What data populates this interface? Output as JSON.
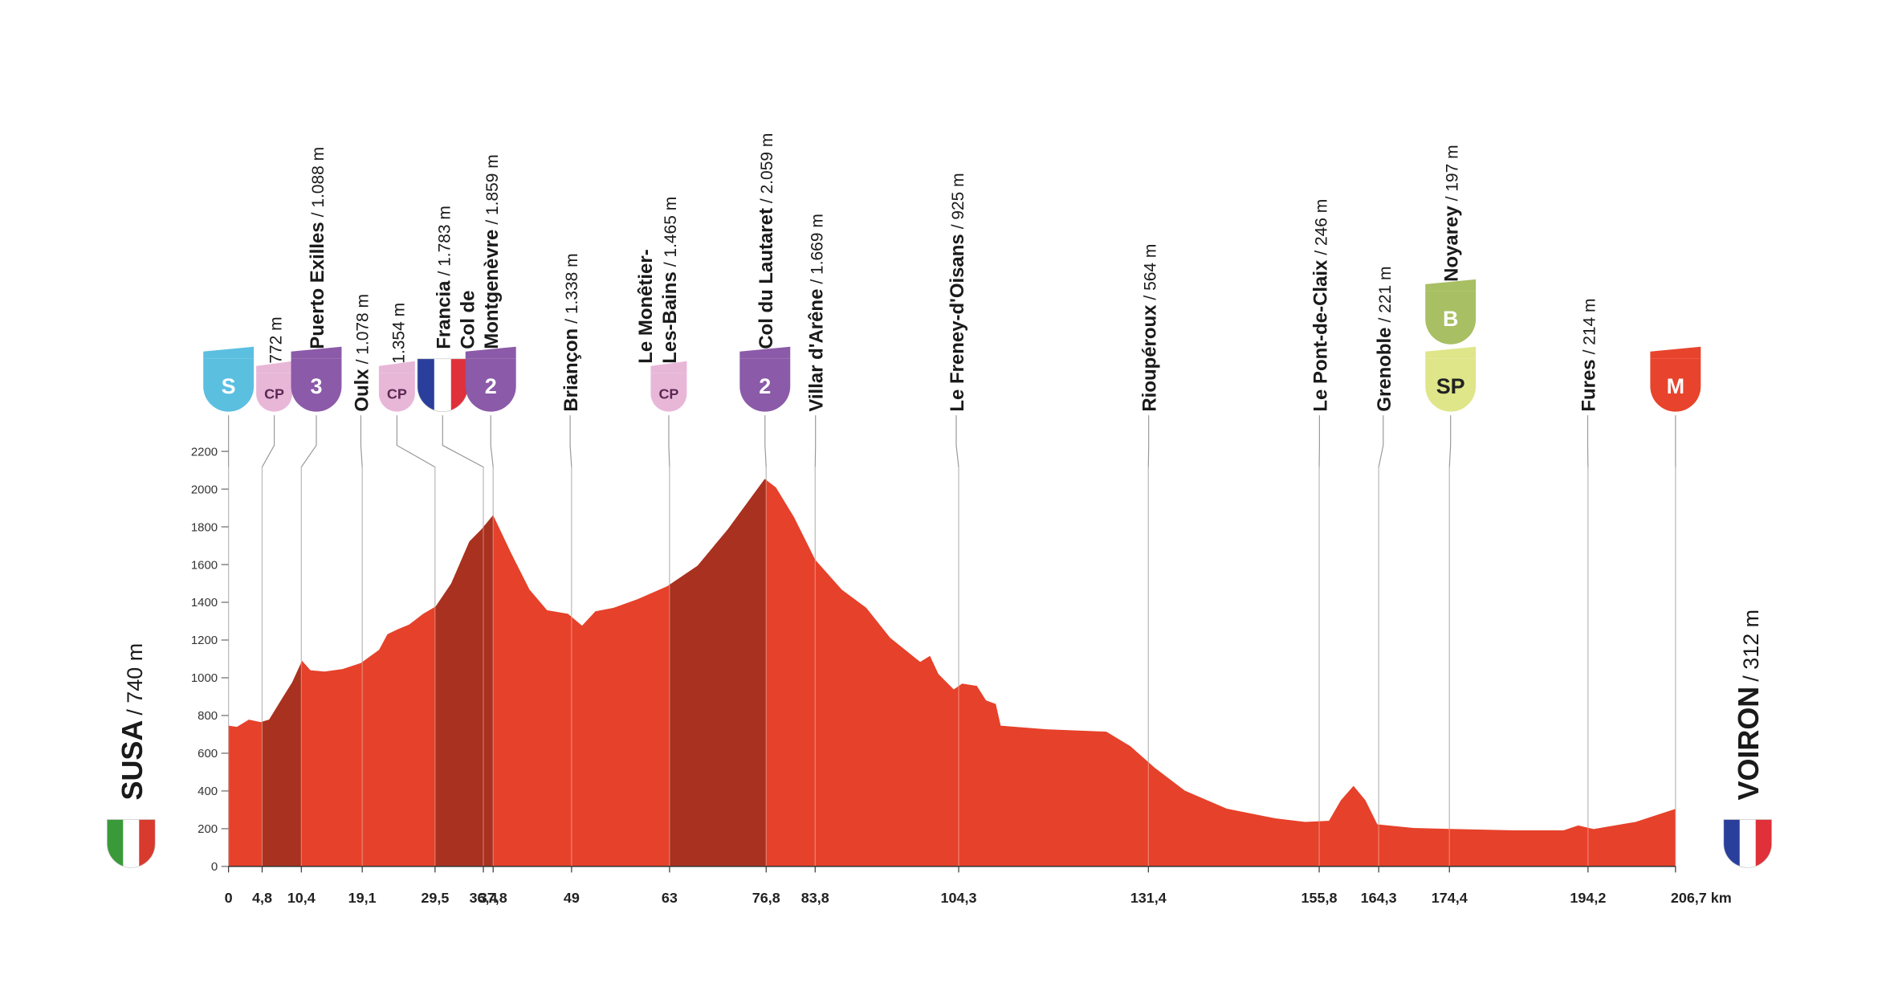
{
  "chart_data": {
    "type": "area",
    "color": "#e6412a",
    "climb_color": "#a9311f",
    "x": [
      0,
      1.2,
      2.9,
      4.6,
      5.8,
      7.7,
      9.1,
      10.5,
      11.7,
      13.7,
      16.3,
      18.9,
      21.5,
      22.7,
      24.1,
      25.8,
      27.8,
      29.6,
      31.8,
      34.4,
      36.1,
      37.8,
      40.4,
      43,
      45.5,
      48.5,
      50.5,
      52.4,
      55,
      58.4,
      62.7,
      67,
      71.3,
      76.6,
      78.2,
      80.8,
      83.8,
      87.6,
      91.1,
      94.5,
      98.8,
      100.2,
      101.4,
      103.6,
      104.8,
      106.9,
      108.2,
      109.6,
      110.3,
      116.8,
      125.4,
      128.8,
      132.3,
      136.6,
      142.6,
      149.5,
      153.8,
      157.2,
      158.9,
      160.7,
      162.4,
      164.1,
      169.2,
      175.3,
      183.8,
      190.7,
      192.8,
      195,
      201,
      206.7
    ],
    "values": [
      746,
      740,
      778,
      765,
      778,
      893,
      976,
      1090,
      1040,
      1033,
      1046,
      1078,
      1148,
      1231,
      1256,
      1282,
      1339,
      1378,
      1499,
      1722,
      1786,
      1862,
      1658,
      1467,
      1358,
      1339,
      1276,
      1352,
      1371,
      1416,
      1486,
      1594,
      1786,
      2054,
      2009,
      1850,
      1626,
      1467,
      1371,
      1212,
      1084,
      1116,
      1020,
      938,
      969,
      957,
      880,
      861,
      746,
      727,
      714,
      638,
      523,
      402,
      306,
      255,
      236,
      242,
      351,
      427,
      351,
      223,
      204,
      198,
      191,
      191,
      217,
      198,
      236,
      305
    ],
    "climbs": [
      [
        4.8,
        10.4
      ],
      [
        29.5,
        37.8
      ],
      [
        63,
        76.8
      ]
    ],
    "xlim": [
      0,
      206.7
    ],
    "ylim": [
      0,
      2200
    ],
    "yticks": [
      0,
      200,
      400,
      600,
      800,
      1000,
      1200,
      1400,
      1600,
      1800,
      2000,
      2200
    ],
    "xticks": [
      0,
      {
        "value": 4.8,
        "label": "4,8"
      },
      {
        "value": 10.4,
        "label": "10,4"
      },
      {
        "value": 19.1,
        "label": "19,1"
      },
      {
        "value": 29.5,
        "label": "29,5"
      },
      {
        "value": 36.4,
        "label": "36,4"
      },
      {
        "value": 37.8,
        "label": "37,8"
      },
      49,
      63,
      {
        "value": 76.8,
        "label": "76,8"
      },
      {
        "value": 83.8,
        "label": "83,8"
      },
      {
        "value": 104.3,
        "label": "104,3"
      },
      {
        "value": 131.4,
        "label": "131,4"
      },
      {
        "value": 155.8,
        "label": "155,8"
      },
      {
        "value": 164.3,
        "label": "164,3"
      },
      {
        "value": 174.4,
        "label": "174,4"
      },
      {
        "value": 194.2,
        "label": "194,2"
      },
      {
        "value": 206.7,
        "label": "206,7 km"
      }
    ],
    "start": {
      "name": "SUSA",
      "altitude": "/ 740 m",
      "flag": [
        "#3a9a3a",
        "#ffffff",
        "#d83a2e"
      ]
    },
    "finish": {
      "name": "VOIRON",
      "altitude": "/ 312 m",
      "flag": [
        "#2a3f9c",
        "#ffffff",
        "#e0303a"
      ]
    },
    "waypoints": [
      {
        "km": 0,
        "badges": [
          {
            "text": "S",
            "color": "#5bbfe0",
            "text_color": "#ffffff",
            "shape": "large"
          }
        ]
      },
      {
        "km": 4.8,
        "altitude": "772 m",
        "badges": [
          {
            "text": "CP",
            "color": "#e8b7d8",
            "text_color": "#5a2a55",
            "shape": "small"
          }
        ]
      },
      {
        "km": 10.4,
        "name": [
          "Puerto Exilles"
        ],
        "altitude": "/ 1.088 m",
        "badges": [
          {
            "text": "3",
            "color": "#8b5aa8",
            "text_color": "#ffffff",
            "shape": "large"
          }
        ]
      },
      {
        "km": 19.1,
        "name": [
          "Oulx"
        ],
        "altitude": "/ 1.078 m"
      },
      {
        "km": 29.5,
        "altitude": "1.354 m",
        "badges": [
          {
            "text": "CP",
            "color": "#e8b7d8",
            "text_color": "#5a2a55",
            "shape": "small"
          }
        ]
      },
      {
        "km": 36.4,
        "name": [
          "Francia"
        ],
        "altitude": "/ 1.783 m",
        "badges": [
          {
            "flag": [
              "#2a3f9c",
              "#ffffff",
              "#e0303a"
            ],
            "shape": "large"
          }
        ]
      },
      {
        "km": 37.8,
        "name": [
          "Col de",
          "Montgenèvre"
        ],
        "altitude": "/ 1.859 m",
        "badges": [
          {
            "text": "2",
            "color": "#8b5aa8",
            "text_color": "#ffffff",
            "shape": "large"
          }
        ]
      },
      {
        "km": 49,
        "name": [
          "Briançon"
        ],
        "altitude": "/ 1.338 m"
      },
      {
        "km": 63,
        "name": [
          "Le Monêtier-",
          "Les-Bains"
        ],
        "altitude": "/ 1.465 m",
        "badges": [
          {
            "text": "CP",
            "color": "#e8b7d8",
            "text_color": "#5a2a55",
            "shape": "small"
          }
        ]
      },
      {
        "km": 76.8,
        "name": [
          "Col du Lautaret"
        ],
        "altitude": "/ 2.059 m",
        "badges": [
          {
            "text": "2",
            "color": "#8b5aa8",
            "text_color": "#ffffff",
            "shape": "large"
          }
        ]
      },
      {
        "km": 83.8,
        "name": [
          "Villar d'Arêne"
        ],
        "altitude": "/ 1.669 m"
      },
      {
        "km": 104.3,
        "name": [
          "Le Freney-d'Oisans"
        ],
        "altitude": "/ 925 m"
      },
      {
        "km": 131.4,
        "name": [
          "Rioupéroux"
        ],
        "altitude": "/ 564 m"
      },
      {
        "km": 155.8,
        "name": [
          "Le Pont-de-Claix"
        ],
        "altitude": "/ 246 m"
      },
      {
        "km": 164.3,
        "name": [
          "Grenoble"
        ],
        "altitude": "/ 221 m"
      },
      {
        "km": 174.4,
        "name": [
          "Noyarey"
        ],
        "altitude": "/ 197 m",
        "badges": [
          {
            "text": "SP",
            "color": "#dfe68a",
            "text_color": "#222222",
            "shape": "large"
          },
          {
            "text": "B",
            "color": "#a8bf63",
            "text_color": "#ffffff",
            "shape": "large"
          }
        ]
      },
      {
        "km": 194.2,
        "name": [
          "Fures"
        ],
        "altitude": "/ 214 m"
      },
      {
        "km": 206.7,
        "badges": [
          {
            "text": "M",
            "color": "#e8432c",
            "text_color": "#ffffff",
            "shape": "large"
          }
        ]
      }
    ]
  }
}
